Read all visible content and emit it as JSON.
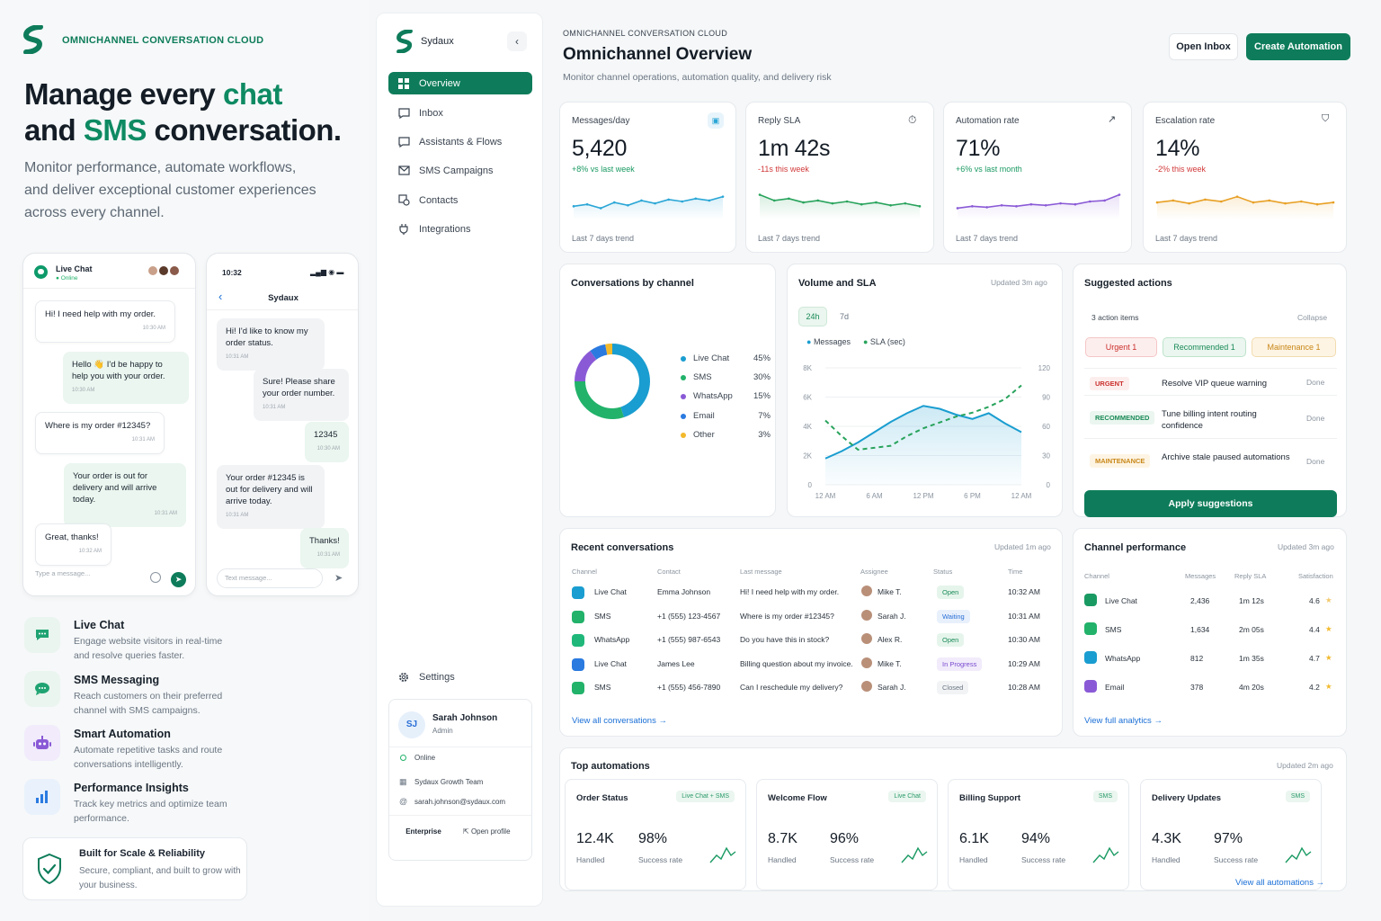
{
  "marketing": {
    "tag": "OMNICHANNEL CONVERSATION CLOUD",
    "hero_line1_a": "Manage every ",
    "hero_line1_b": "chat",
    "hero_line2_a": "and ",
    "hero_line2_b": "SMS",
    "hero_line2_c": " conversation.",
    "subtitle": "Monitor performance, automate workflows, and deliver exceptional customer experiences across every channel.",
    "livechat_phone": {
      "title": "Live Chat",
      "status": "Online",
      "messages": [
        {
          "text": "Hi! I need help with my order.",
          "time": "10:30 AM"
        },
        {
          "text": "Hello 👋 I'd be happy to help you with your order.",
          "time": "10:30 AM"
        },
        {
          "text": "Where is my order #12345?",
          "time": "10:31 AM"
        },
        {
          "text": "Your order is out for delivery and will arrive today.",
          "time": "10:31 AM"
        },
        {
          "text": "Great, thanks!",
          "time": "10:32 AM"
        }
      ],
      "input_placeholder": "Type a message..."
    },
    "sms_phone": {
      "clock": "10:32",
      "contact": "Sydaux",
      "messages": [
        {
          "text": "Hi! I'd like to know my order status.",
          "time": "10:31 AM"
        },
        {
          "text": "Sure! Please share your order number.",
          "time": "10:31 AM"
        },
        {
          "text": "12345",
          "time": "10:30 AM"
        },
        {
          "text": "Your order #12345 is out for delivery and will arrive today.",
          "time": "10:31 AM"
        },
        {
          "text": "Thanks!",
          "time": "10:31 AM"
        }
      ],
      "input_placeholder": "Text message..."
    },
    "features": [
      {
        "icon": "chat-bubble-icon",
        "title": "Live Chat",
        "desc": "Engage website visitors in real-time and resolve queries faster."
      },
      {
        "icon": "sms-icon",
        "title": "SMS Messaging",
        "desc": "Reach customers on their preferred channel with SMS campaigns."
      },
      {
        "icon": "robot-icon",
        "title": "Smart Automation",
        "desc": "Automate repetitive tasks and route conversations intelligently."
      },
      {
        "icon": "bar-chart-icon",
        "title": "Performance Insights",
        "desc": "Track key metrics and optimize team performance."
      }
    ],
    "trust": {
      "title": "Built for Scale & Reliability",
      "desc": "Secure, compliant, and built to grow with your business."
    }
  },
  "sidebar": {
    "brand": "Sydaux",
    "items": [
      {
        "label": "Overview",
        "icon": "grid-icon",
        "active": true
      },
      {
        "label": "Inbox",
        "icon": "inbox-icon"
      },
      {
        "label": "Assistants & Flows",
        "icon": "flow-icon"
      },
      {
        "label": "SMS Campaigns",
        "icon": "mail-icon"
      },
      {
        "label": "Contacts",
        "icon": "contacts-icon"
      },
      {
        "label": "Integrations",
        "icon": "plug-icon"
      }
    ],
    "settings_label": "Settings",
    "profile": {
      "initials": "SJ",
      "name": "Sarah Johnson",
      "role": "Admin",
      "status": "Online",
      "team": "Sydaux Growth Team",
      "email": "sarah.johnson@sydaux.com",
      "plan": "Enterprise",
      "open_profile": "Open profile"
    }
  },
  "header": {
    "eyebrow": "OMNICHANNEL CONVERSATION CLOUD",
    "title": "Omnichannel Overview",
    "subtitle": "Monitor channel operations, automation quality, and delivery risk",
    "open_inbox": "Open Inbox",
    "create_automation": "Create Automation"
  },
  "stats": [
    {
      "label": "Messages/day",
      "value": "5,420",
      "delta": "+8% vs last week",
      "delta_color": "#1a9a63",
      "footer": "Last 7 days trend",
      "icon": "chat-icon",
      "line_color": "#2aa6d6",
      "trend": [
        40,
        42,
        38,
        44,
        41,
        46,
        43,
        47,
        45,
        48,
        46,
        50
      ]
    },
    {
      "label": "Reply SLA",
      "value": "1m 42s",
      "delta": "-11s this week",
      "delta_color": "#d23a3a",
      "footer": "Last 7 days trend",
      "icon": "timer-icon",
      "line_color": "#28a35c",
      "trend": [
        52,
        46,
        48,
        44,
        46,
        43,
        45,
        42,
        44,
        41,
        43,
        40
      ]
    },
    {
      "label": "Automation rate",
      "value": "71%",
      "delta": "+6% vs last month",
      "delta_color": "#1a9a63",
      "footer": "Last 7 days trend",
      "icon": "trend-up-icon",
      "line_color": "#8a5ad6",
      "trend": [
        38,
        40,
        39,
        41,
        40,
        42,
        41,
        43,
        42,
        45,
        46,
        52
      ]
    },
    {
      "label": "Escalation rate",
      "value": "14%",
      "delta": "-2% this week",
      "delta_color": "#d23a3a",
      "footer": "Last 7 days trend",
      "icon": "shield-icon",
      "line_color": "#e8a025",
      "trend": [
        44,
        46,
        43,
        47,
        45,
        50,
        44,
        46,
        43,
        45,
        42,
        44
      ]
    }
  ],
  "channels_card": {
    "title": "Conversations by channel",
    "rows": [
      {
        "name": "Live Chat",
        "pct": "45%",
        "value": 45,
        "color": "#1a9dd0"
      },
      {
        "name": "SMS",
        "pct": "30%",
        "value": 30,
        "color": "#22b26a"
      },
      {
        "name": "WhatsApp",
        "pct": "15%",
        "value": 15,
        "color": "#8a5ad6"
      },
      {
        "name": "Email",
        "pct": "7%",
        "value": 7,
        "color": "#2a7ae0"
      },
      {
        "name": "Other",
        "pct": "3%",
        "value": 3,
        "color": "#f2b92c"
      }
    ]
  },
  "volume_card": {
    "title": "Volume and SLA",
    "updated": "Updated 3m ago",
    "ranges": [
      "24h",
      "7d"
    ],
    "legend": [
      {
        "name": "Messages",
        "color": "#1a9dd0"
      },
      {
        "name": "SLA (sec)",
        "color": "#28a35c"
      }
    ],
    "y_left": [
      "8K",
      "6K",
      "4K",
      "2K",
      "0"
    ],
    "y_right": [
      "120",
      "90",
      "60",
      "30",
      "0"
    ],
    "x_labels": [
      "12 AM",
      "6 AM",
      "12 PM",
      "6 PM",
      "12 AM"
    ]
  },
  "chart_data": {
    "type": "line",
    "x": [
      "12 AM",
      "",
      "",
      "6 AM",
      "",
      "",
      "12 PM",
      "",
      "",
      "6 PM",
      "",
      "",
      "12 AM"
    ],
    "series": [
      {
        "name": "Messages",
        "values": [
          1800,
          2300,
          2900,
          3600,
          4300,
          4900,
          5400,
          5200,
          4800,
          4500,
          4900,
          4200,
          3600
        ]
      },
      {
        "name": "SLA (sec)",
        "values": [
          66,
          50,
          36,
          38,
          40,
          50,
          58,
          64,
          70,
          74,
          80,
          88,
          102
        ]
      }
    ],
    "ylim_left": [
      0,
      8000
    ],
    "ylim_right": [
      0,
      120
    ]
  },
  "suggested": {
    "title": "Suggested actions",
    "count": "3 action items",
    "collapse": "Collapse",
    "filters": [
      {
        "label": "Urgent 1",
        "bg": "#fdeeee",
        "fg": "#c9302c",
        "border": "#f5c6c6"
      },
      {
        "label": "Recommended 1",
        "bg": "#eaf6ef",
        "fg": "#1a8a57",
        "border": "#bfe3cc"
      },
      {
        "label": "Maintenance 1",
        "bg": "#fdf4e4",
        "fg": "#c98717",
        "border": "#f2dcb0"
      }
    ],
    "items": [
      {
        "tag": "URGENT",
        "tag_color": "#c9302c",
        "tag_bg": "#fdeeee",
        "text": "Resolve VIP queue warning",
        "action": "Done"
      },
      {
        "tag": "RECOMMENDED",
        "tag_color": "#1a8a57",
        "tag_bg": "#eaf6ef",
        "text": "Tune billing intent routing confidence",
        "action": "Done"
      },
      {
        "tag": "MAINTENANCE",
        "tag_color": "#c98717",
        "tag_bg": "#fdf4e4",
        "text": "Archive stale paused automations",
        "action": "Done"
      }
    ],
    "apply": "Apply suggestions"
  },
  "recent": {
    "title": "Recent conversations",
    "updated": "Updated 1m ago",
    "headers": [
      "Channel",
      "Contact",
      "Last message",
      "Assignee",
      "Status",
      "Time"
    ],
    "rows": [
      {
        "channel": "Live Chat",
        "color": "#1a9dd0",
        "contact": "Emma Johnson",
        "message": "Hi! I need help with my order.",
        "assignee": "Mike T.",
        "status": "Open",
        "status_fg": "#1a8a57",
        "status_bg": "#e6f5ec",
        "time": "10:32 AM"
      },
      {
        "channel": "SMS",
        "color": "#22b26a",
        "contact": "+1 (555) 123-4567",
        "message": "Where is my order #12345?",
        "assignee": "Sarah J.",
        "status": "Waiting",
        "status_fg": "#2a6fd6",
        "status_bg": "#e8f0fc",
        "time": "10:31 AM"
      },
      {
        "channel": "WhatsApp",
        "color": "#1fb87a",
        "contact": "+1 (555) 987-6543",
        "message": "Do you have this in stock?",
        "assignee": "Alex R.",
        "status": "Open",
        "status_fg": "#1a8a57",
        "status_bg": "#e6f5ec",
        "time": "10:30 AM"
      },
      {
        "channel": "Live Chat",
        "color": "#2a7ae0",
        "contact": "James Lee",
        "message": "Billing question about my invoice.",
        "assignee": "Mike T.",
        "status": "In Progress",
        "status_fg": "#7a4ad0",
        "status_bg": "#f1ebfb",
        "time": "10:29 AM"
      },
      {
        "channel": "SMS",
        "color": "#22b26a",
        "contact": "+1 (555) 456-7890",
        "message": "Can I reschedule my delivery?",
        "assignee": "Sarah J.",
        "status": "Closed",
        "status_fg": "#6b7683",
        "status_bg": "#f1f3f5",
        "time": "10:28 AM"
      }
    ],
    "view_all": "View all conversations"
  },
  "channel_perf": {
    "title": "Channel performance",
    "updated": "Updated 3m ago",
    "headers": [
      "Channel",
      "Messages",
      "Reply SLA",
      "Satisfaction"
    ],
    "rows": [
      {
        "channel": "Live Chat",
        "color": "#1a9a63",
        "messages": "2,436",
        "sla": "1m 12s",
        "sat": "4.6",
        "star_color": "#f2c96c"
      },
      {
        "channel": "SMS",
        "color": "#22b26a",
        "messages": "1,634",
        "sla": "2m 05s",
        "sat": "4.4",
        "star_color": "#f2b92c"
      },
      {
        "channel": "WhatsApp",
        "color": "#1a9dd0",
        "messages": "812",
        "sla": "1m 35s",
        "sat": "4.7",
        "star_color": "#f2b92c"
      },
      {
        "channel": "Email",
        "color": "#8a5ad6",
        "messages": "378",
        "sla": "4m 20s",
        "sat": "4.2",
        "star_color": "#f2b92c"
      }
    ],
    "view_full": "View full analytics"
  },
  "top_automations": {
    "title": "Top automations",
    "updated": "Updated 2m ago",
    "cards": [
      {
        "name": "Order Status",
        "tag": "Live Chat + SMS",
        "handled": "12.4K",
        "success": "98%",
        "handled_label": "Handled",
        "success_label": "Success rate"
      },
      {
        "name": "Welcome Flow",
        "tag": "Live Chat",
        "handled": "8.7K",
        "success": "96%",
        "handled_label": "Handled",
        "success_label": "Success rate"
      },
      {
        "name": "Billing Support",
        "tag": "SMS",
        "handled": "6.1K",
        "success": "94%",
        "handled_label": "Handled",
        "success_label": "Success rate"
      },
      {
        "name": "Delivery Updates",
        "tag": "SMS",
        "handled": "4.3K",
        "success": "97%",
        "handled_label": "Handled",
        "success_label": "Success rate"
      }
    ],
    "view_all": "View all automations"
  }
}
